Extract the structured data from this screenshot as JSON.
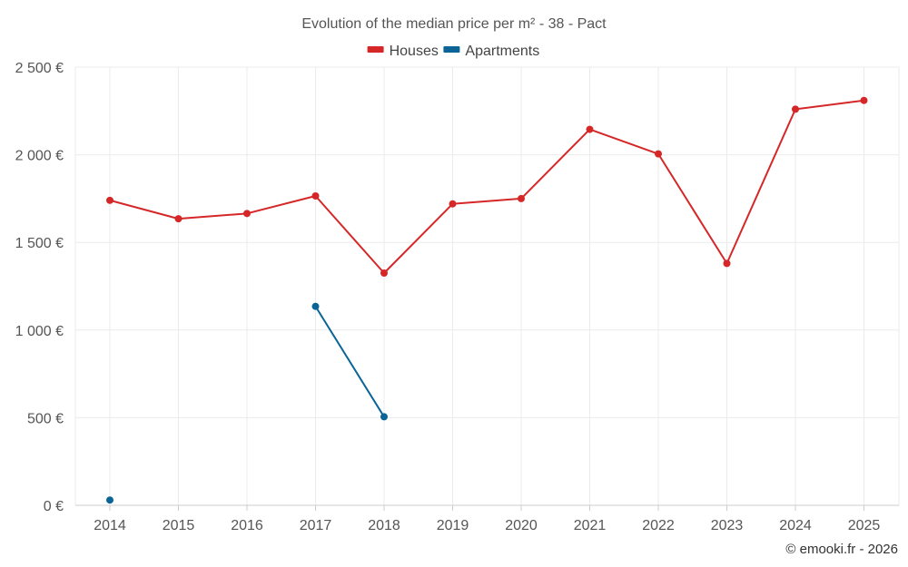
{
  "chart_data": {
    "type": "line",
    "title": "Evolution of the median price per m² - 38 - Pact",
    "categories": [
      "2014",
      "2015",
      "2016",
      "2017",
      "2018",
      "2019",
      "2020",
      "2021",
      "2022",
      "2023",
      "2024",
      "2025"
    ],
    "series": [
      {
        "name": "Houses",
        "color": "#d62728",
        "values": [
          1740,
          1635,
          1665,
          1765,
          1325,
          1720,
          1750,
          2145,
          2005,
          1380,
          2260,
          2310
        ]
      },
      {
        "name": "Apartments",
        "color": "#0a6496",
        "values": [
          30,
          null,
          null,
          1135,
          505,
          null,
          null,
          null,
          null,
          null,
          null,
          null
        ]
      }
    ],
    "ylim": [
      0,
      2500
    ],
    "yticks": [
      0,
      500,
      1000,
      1500,
      2000,
      2500
    ],
    "ytick_labels": [
      "0 €",
      "500 €",
      "1 000 €",
      "1 500 €",
      "2 000 €",
      "2 500 €"
    ],
    "grid": true,
    "legend_position": "top-center"
  },
  "copyright": "© emooki.fr - 2026"
}
